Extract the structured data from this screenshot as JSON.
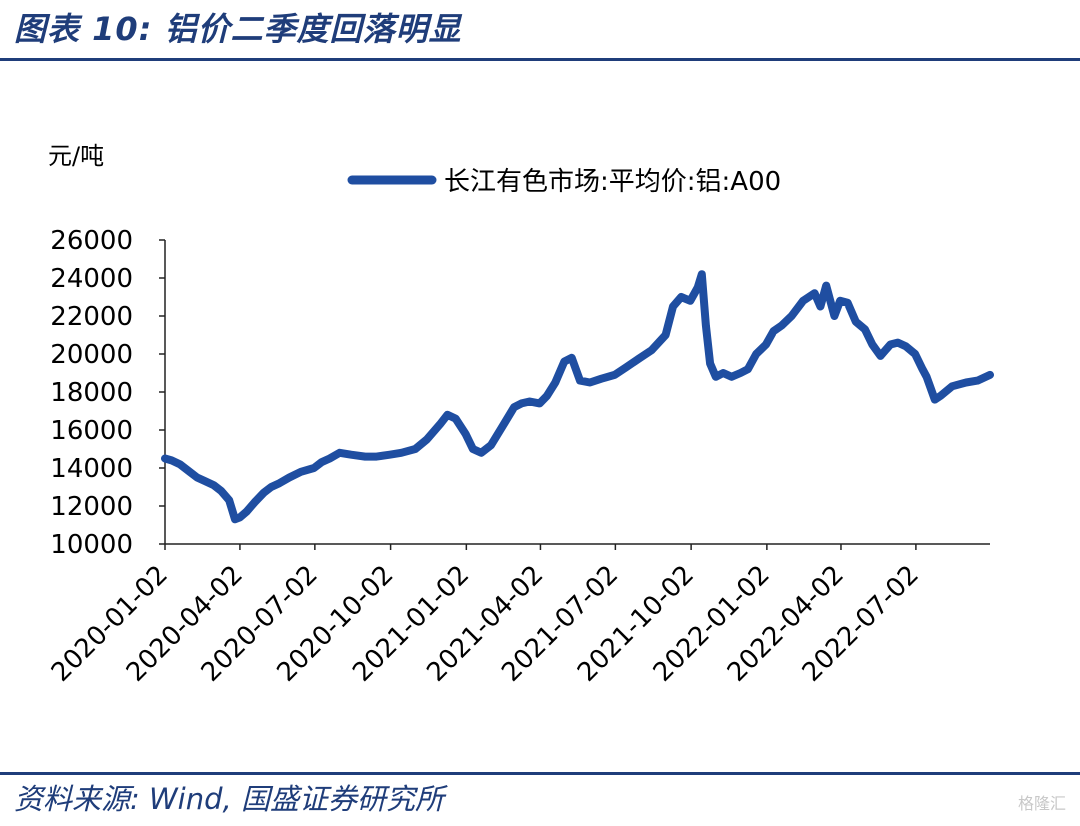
{
  "figure": {
    "title": "图表 10:  铝价二季度回落明显",
    "source": "资料来源:  Wind,  国盛证券研究所",
    "watermark": "格隆汇"
  },
  "chart_data": {
    "type": "line",
    "ylabel": "元/吨",
    "ylim": [
      10000,
      26000
    ],
    "yticks": [
      "26000",
      "24000",
      "22000",
      "20000",
      "18000",
      "16000",
      "14000",
      "12000",
      "10000"
    ],
    "xticks": [
      "2020-01-02",
      "2020-04-02",
      "2020-07-02",
      "2020-10-02",
      "2021-01-02",
      "2021-04-02",
      "2021-07-02",
      "2021-10-02",
      "2022-01-02",
      "2022-04-02",
      "2022-07-02"
    ],
    "xlim": [
      "2020-01-02",
      "2022-09-30"
    ],
    "grid": false,
    "legend_position": "top-center",
    "series": [
      {
        "name": "长江有色市场:平均价:铝:A00",
        "color": "#1f4ea1",
        "x": [
          "2020-01-02",
          "2020-01-10",
          "2020-01-20",
          "2020-02-01",
          "2020-02-10",
          "2020-02-20",
          "2020-03-01",
          "2020-03-10",
          "2020-03-20",
          "2020-03-27",
          "2020-04-02",
          "2020-04-10",
          "2020-04-20",
          "2020-05-01",
          "2020-05-10",
          "2020-05-20",
          "2020-06-01",
          "2020-06-15",
          "2020-07-01",
          "2020-07-10",
          "2020-07-20",
          "2020-08-01",
          "2020-08-15",
          "2020-09-01",
          "2020-09-15",
          "2020-10-01",
          "2020-10-15",
          "2020-11-01",
          "2020-11-15",
          "2020-12-01",
          "2020-12-10",
          "2020-12-20",
          "2021-01-01",
          "2021-01-10",
          "2021-01-20",
          "2021-02-01",
          "2021-02-15",
          "2021-03-01",
          "2021-03-10",
          "2021-03-20",
          "2021-04-01",
          "2021-04-10",
          "2021-04-20",
          "2021-05-01",
          "2021-05-10",
          "2021-05-20",
          "2021-06-01",
          "2021-06-15",
          "2021-07-01",
          "2021-07-15",
          "2021-08-01",
          "2021-08-15",
          "2021-09-01",
          "2021-09-10",
          "2021-09-20",
          "2021-10-01",
          "2021-10-10",
          "2021-10-15",
          "2021-10-20",
          "2021-10-25",
          "2021-11-01",
          "2021-11-10",
          "2021-11-20",
          "2021-12-01",
          "2021-12-10",
          "2021-12-20",
          "2022-01-01",
          "2022-01-10",
          "2022-01-20",
          "2022-02-01",
          "2022-02-15",
          "2022-03-01",
          "2022-03-08",
          "2022-03-15",
          "2022-03-25",
          "2022-04-01",
          "2022-04-10",
          "2022-04-20",
          "2022-05-01",
          "2022-05-10",
          "2022-05-20",
          "2022-06-01",
          "2022-06-10",
          "2022-06-20",
          "2022-07-01",
          "2022-07-10",
          "2022-07-15",
          "2022-07-25",
          "2022-08-01",
          "2022-08-15",
          "2022-09-01",
          "2022-09-15",
          "2022-09-30"
        ],
        "values": [
          14500,
          14400,
          14200,
          13800,
          13500,
          13300,
          13100,
          12800,
          12300,
          11300,
          11400,
          11700,
          12200,
          12700,
          13000,
          13200,
          13500,
          13800,
          14000,
          14300,
          14500,
          14800,
          14700,
          14600,
          14600,
          14700,
          14800,
          15000,
          15500,
          16300,
          16800,
          16600,
          15800,
          15000,
          14800,
          15200,
          16200,
          17200,
          17400,
          17500,
          17400,
          17800,
          18500,
          19600,
          19800,
          18600,
          18500,
          18700,
          18900,
          19300,
          19800,
          20200,
          21000,
          22500,
          23000,
          22800,
          23500,
          24200,
          21500,
          19500,
          18800,
          19000,
          18800,
          19000,
          19200,
          20000,
          20500,
          21200,
          21500,
          22000,
          22800,
          23200,
          22500,
          23600,
          22000,
          22800,
          22700,
          21700,
          21300,
          20500,
          19900,
          20500,
          20600,
          20400,
          20000,
          19200,
          18800,
          17600,
          17800,
          18300,
          18500,
          18600,
          18900
        ]
      }
    ]
  }
}
